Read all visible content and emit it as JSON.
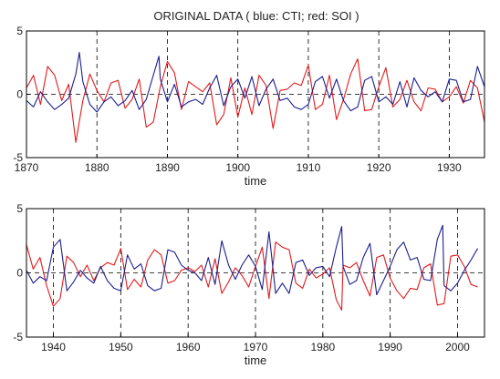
{
  "figure": {
    "title": "ORIGINAL DATA ( blue: CTI; red: SOI )"
  },
  "chart_data": [
    {
      "type": "line",
      "xlabel": "time",
      "ylabel": "",
      "xlim": [
        1870,
        1935
      ],
      "ylim": [
        -5,
        5
      ],
      "x_ticks": [
        "1870",
        "1880",
        "1890",
        "1900",
        "1910",
        "1920",
        "1930"
      ],
      "y_ticks": [
        "5",
        "0",
        "-5"
      ],
      "grid": "dashed vertical lines at decades; dashed zero line",
      "colors": {
        "CTI": "#1b1f8f",
        "SOI": "#e21b1b"
      },
      "series": [
        {
          "name": "CTI",
          "x": [
            1870,
            1871,
            1872,
            1873,
            1874,
            1875,
            1876,
            1877,
            1877.5,
            1878,
            1879,
            1880,
            1881,
            1882,
            1883,
            1884,
            1885,
            1886,
            1887,
            1888,
            1888.8,
            1889,
            1890,
            1891,
            1892,
            1893,
            1894,
            1895,
            1896,
            1897,
            1898,
            1899,
            1900,
            1901,
            1902,
            1903,
            1904,
            1905,
            1906,
            1907,
            1908,
            1909,
            1910,
            1911,
            1912,
            1913,
            1914,
            1915,
            1916,
            1917,
            1918,
            1919,
            1920,
            1921,
            1922,
            1923,
            1924,
            1925,
            1926,
            1927,
            1928,
            1929,
            1930,
            1931,
            1932,
            1933,
            1934,
            1935
          ],
          "values": [
            -0.5,
            -1.0,
            0.2,
            -0.6,
            -1.2,
            -0.8,
            -0.3,
            1.6,
            3.3,
            1.0,
            -0.8,
            -1.4,
            -0.6,
            -0.2,
            -0.9,
            -0.5,
            0.3,
            -1.2,
            -0.4,
            1.5,
            3.0,
            1.2,
            -0.6,
            0.8,
            -1.0,
            -0.6,
            -0.4,
            -0.8,
            0.5,
            1.5,
            -0.9,
            0.6,
            1.2,
            -0.3,
            1.4,
            -0.9,
            0.4,
            1.2,
            -0.5,
            -0.3,
            -1.0,
            -1.2,
            -0.8,
            1.0,
            1.4,
            -0.3,
            1.2,
            -0.5,
            -1.3,
            -1.0,
            1.1,
            1.4,
            -0.6,
            -0.2,
            -0.8,
            1.0,
            -1.0,
            1.3,
            0.3,
            -0.2,
            0.2,
            -0.6,
            1.2,
            1.1,
            -0.6,
            -0.4,
            2.2,
            0.6
          ]
        },
        {
          "name": "SOI",
          "x": [
            1870,
            1871,
            1872,
            1873,
            1874,
            1875,
            1876,
            1877,
            1878,
            1879,
            1880,
            1881,
            1882,
            1883,
            1884,
            1885,
            1886,
            1887,
            1888,
            1889,
            1890,
            1891,
            1892,
            1893,
            1894,
            1895,
            1896,
            1897,
            1898,
            1899,
            1900,
            1901,
            1902,
            1903,
            1904,
            1905,
            1906,
            1907,
            1908,
            1909,
            1910,
            1911,
            1912,
            1913,
            1914,
            1915,
            1916,
            1917,
            1918,
            1919,
            1920,
            1921,
            1922,
            1923,
            1924,
            1925,
            1926,
            1927,
            1928,
            1929,
            1930,
            1931,
            1932,
            1933,
            1934,
            1935
          ],
          "values": [
            0.5,
            1.5,
            -0.8,
            2.2,
            1.5,
            -0.5,
            0.8,
            -3.8,
            -0.5,
            1.6,
            0.3,
            -0.6,
            0.9,
            1.1,
            -1.1,
            -0.4,
            1.2,
            -2.6,
            -2.2,
            0.6,
            2.6,
            1.7,
            -1.2,
            1.0,
            0.6,
            0.2,
            0.9,
            -2.4,
            -1.6,
            1.3,
            -1.8,
            0.5,
            -1.6,
            1.5,
            0.7,
            -2.7,
            0.3,
            0.4,
            0.9,
            0.7,
            2.3,
            -1.2,
            -0.8,
            1.5,
            -2.0,
            -0.4,
            1.6,
            2.8,
            -1.3,
            -1.2,
            0.6,
            2.1,
            -1.0,
            -0.4,
            1.1,
            -0.6,
            -1.3,
            0.5,
            0.4,
            -0.6,
            -0.2,
            0.6,
            -0.7,
            1.1,
            0.5,
            -2.2
          ]
        }
      ]
    },
    {
      "type": "line",
      "xlabel": "time",
      "ylabel": "",
      "xlim": [
        1936,
        2004
      ],
      "ylim": [
        -5,
        5
      ],
      "x_ticks": [
        "1940",
        "1950",
        "1960",
        "1970",
        "1980",
        "1990",
        "2000"
      ],
      "y_ticks": [
        "5",
        "0",
        "-5"
      ],
      "grid": "dashed vertical lines at decades; dashed zero line",
      "colors": {
        "CTI": "#1b1f8f",
        "SOI": "#e21b1b"
      },
      "series": [
        {
          "name": "CTI",
          "x": [
            1936,
            1937,
            1938,
            1939,
            1940,
            1941,
            1942,
            1943,
            1944,
            1945,
            1946,
            1947,
            1948,
            1949,
            1950,
            1951,
            1952,
            1953,
            1954,
            1955,
            1956,
            1957,
            1958,
            1959,
            1960,
            1961,
            1962,
            1963,
            1964,
            1965,
            1966,
            1967,
            1968,
            1969,
            1970,
            1971,
            1972,
            1973,
            1974,
            1975,
            1976,
            1977,
            1978,
            1979,
            1980,
            1981,
            1982,
            1982.8,
            1983,
            1984,
            1985,
            1986,
            1987,
            1988,
            1989,
            1990,
            1991,
            1992,
            1993,
            1994,
            1995,
            1996,
            1997,
            1997.8,
            1998,
            1999,
            2000,
            2001,
            2002,
            2003
          ],
          "values": [
            0.2,
            -0.8,
            -0.3,
            -0.6,
            2.0,
            2.6,
            -1.4,
            -0.7,
            0.2,
            -0.4,
            -0.8,
            0.5,
            -0.6,
            -1.2,
            -1.4,
            1.4,
            0.3,
            0.7,
            -1.0,
            -1.4,
            -1.2,
            1.8,
            1.6,
            0.6,
            0.2,
            0.0,
            -0.6,
            1.2,
            -0.9,
            2.5,
            0.6,
            -0.5,
            0.6,
            1.4,
            0.5,
            -1.3,
            3.2,
            -1.6,
            -0.8,
            -1.6,
            0.8,
            1.0,
            -0.2,
            0.4,
            0.5,
            -0.3,
            2.0,
            3.6,
            0.5,
            -0.9,
            -0.6,
            1.2,
            2.3,
            -1.7,
            -0.6,
            0.5,
            1.8,
            2.4,
            1.0,
            1.2,
            -0.5,
            -0.6,
            2.6,
            3.7,
            -1.0,
            -1.4,
            -0.8,
            0.2,
            1.0,
            1.9
          ]
        },
        {
          "name": "SOI",
          "x": [
            1936,
            1937,
            1938,
            1939,
            1940,
            1941,
            1942,
            1943,
            1944,
            1945,
            1946,
            1947,
            1948,
            1949,
            1950,
            1951,
            1952,
            1953,
            1954,
            1955,
            1956,
            1957,
            1958,
            1959,
            1960,
            1961,
            1962,
            1963,
            1964,
            1965,
            1966,
            1967,
            1968,
            1969,
            1970,
            1971,
            1972,
            1973,
            1974,
            1975,
            1976,
            1977,
            1978,
            1979,
            1980,
            1981,
            1982,
            1982.8,
            1983,
            1984,
            1985,
            1986,
            1987,
            1988,
            1989,
            1990,
            1991,
            1992,
            1993,
            1994,
            1995,
            1996,
            1997,
            1998,
            1999,
            2000,
            2001,
            2002,
            2003
          ],
          "values": [
            2.2,
            0.3,
            1.2,
            -1.0,
            -2.6,
            -2.0,
            1.3,
            0.8,
            -0.3,
            0.6,
            -0.6,
            0.4,
            0.8,
            0.6,
            1.9,
            -1.3,
            -0.5,
            -1.1,
            1.0,
            1.8,
            1.4,
            -0.8,
            -0.6,
            0.2,
            0.4,
            0.1,
            0.6,
            -1.1,
            1.1,
            -1.6,
            -0.7,
            0.4,
            -0.2,
            -1.1,
            0.5,
            2.0,
            -2.0,
            2.4,
            2.0,
            1.8,
            -0.8,
            -1.2,
            0.3,
            -0.4,
            -0.1,
            0.4,
            -2.1,
            -2.9,
            0.6,
            0.4,
            0.8,
            -0.6,
            -1.8,
            1.2,
            1.4,
            -0.4,
            -1.4,
            -2.0,
            -1.2,
            -1.3,
            0.4,
            0.7,
            -2.5,
            -2.4,
            1.3,
            1.4,
            0.5,
            -0.9,
            -1.1
          ]
        }
      ]
    }
  ]
}
